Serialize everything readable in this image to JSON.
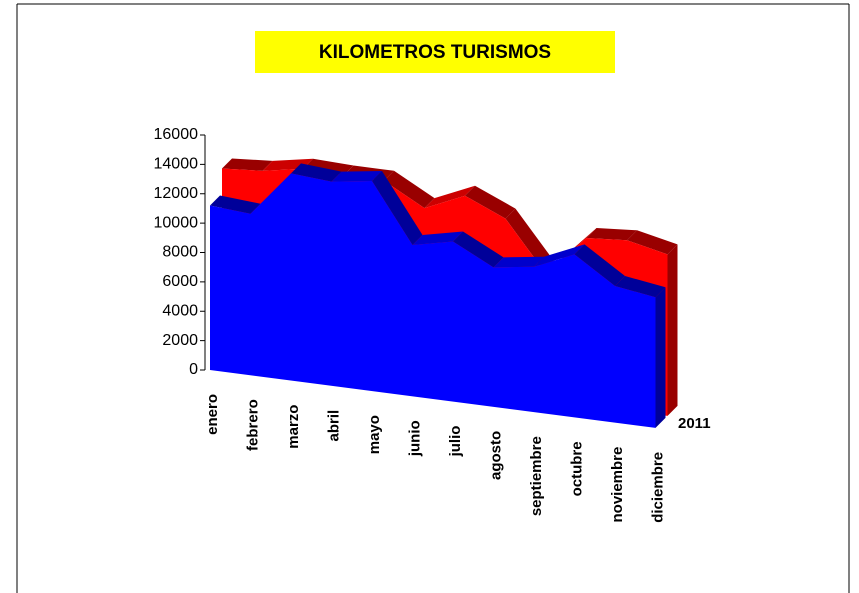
{
  "chart_data": {
    "type": "area3d",
    "title": "KILOMETROS TURISMOS",
    "categories": [
      "enero",
      "febrero",
      "marzo",
      "abril",
      "mayo",
      "junio",
      "julio",
      "agosto",
      "septiembre",
      "octubre",
      "noviembre",
      "diciembre"
    ],
    "series": [
      {
        "name": "2011",
        "color": "#0000ff",
        "values": [
          11200,
          11000,
          14100,
          13900,
          14300,
          10300,
          10900,
          9500,
          9900,
          11100,
          9300,
          8900
        ]
      },
      {
        "color": "#ff0000",
        "values": [
          12900,
          13100,
          13600,
          13500,
          13500,
          12000,
          13200,
          12000,
          8600,
          11400,
          11600,
          11000
        ]
      }
    ],
    "ylim": [
      0,
      16000
    ],
    "yticks": [
      0,
      2000,
      4000,
      6000,
      8000,
      10000,
      12000,
      14000,
      16000
    ]
  }
}
